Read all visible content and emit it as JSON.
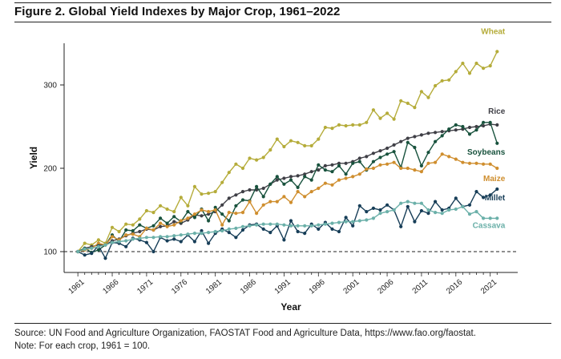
{
  "title": "Figure 2. Global Yield Indexes by Major Crop, 1961–2022",
  "source_note": "Source: UN Food and Agriculture Organization, FAOSTAT Food and Agriculture Data, https://www.fao.org/faostat.",
  "note": "Note: For each crop, 1961 = 100.",
  "chart_data": {
    "type": "line",
    "xlabel": "Year",
    "ylabel": "Yield",
    "x_ticks": [
      1961,
      1966,
      1971,
      1976,
      1981,
      1986,
      1991,
      1996,
      2001,
      2006,
      2011,
      2016,
      2021
    ],
    "y_ticks": [
      100,
      200,
      300
    ],
    "xlim": [
      1959,
      2025
    ],
    "ylim": [
      75,
      350
    ],
    "reference_line": {
      "y": 100,
      "style": "dashed"
    },
    "x": [
      1961,
      1962,
      1963,
      1964,
      1965,
      1966,
      1967,
      1968,
      1969,
      1970,
      1971,
      1972,
      1973,
      1974,
      1975,
      1976,
      1977,
      1978,
      1979,
      1980,
      1981,
      1982,
      1983,
      1984,
      1985,
      1986,
      1987,
      1988,
      1989,
      1990,
      1991,
      1992,
      1993,
      1994,
      1995,
      1996,
      1997,
      1998,
      1999,
      2000,
      2001,
      2002,
      2003,
      2004,
      2005,
      2006,
      2007,
      2008,
      2009,
      2010,
      2011,
      2012,
      2013,
      2014,
      2015,
      2016,
      2017,
      2018,
      2019,
      2020,
      2021,
      2022
    ],
    "series": [
      {
        "name": "Wheat",
        "color": "#b5ac3a",
        "values": [
          100,
          110,
          108,
          114,
          110,
          129,
          124,
          133,
          132,
          139,
          149,
          147,
          155,
          151,
          148,
          165,
          155,
          178,
          169,
          170,
          172,
          183,
          195,
          205,
          200,
          212,
          210,
          213,
          222,
          235,
          226,
          233,
          231,
          227,
          227,
          235,
          249,
          248,
          252,
          251,
          252,
          252,
          255,
          270,
          260,
          266,
          259,
          281,
          278,
          273,
          292,
          285,
          299,
          305,
          306,
          316,
          326,
          314,
          326,
          320,
          323,
          340
        ]
      },
      {
        "name": "Rice",
        "color": "#3f3f46",
        "values": [
          100,
          104,
          106,
          108,
          108,
          113,
          115,
          119,
          122,
          124,
          127,
          126,
          130,
          131,
          136,
          134,
          138,
          144,
          143,
          145,
          148,
          156,
          164,
          168,
          172,
          174,
          174,
          176,
          181,
          186,
          188,
          190,
          191,
          193,
          196,
          198,
          203,
          204,
          206,
          206,
          208,
          212,
          214,
          218,
          221,
          224,
          228,
          232,
          236,
          238,
          240,
          242,
          243,
          244,
          245,
          246,
          247,
          249,
          250,
          251,
          253,
          252
        ]
      },
      {
        "name": "Soybeans",
        "color": "#18523d",
        "values": [
          100,
          104,
          99,
          102,
          108,
          120,
          112,
          126,
          125,
          132,
          128,
          131,
          140,
          134,
          142,
          136,
          148,
          141,
          151,
          137,
          153,
          145,
          137,
          155,
          162,
          161,
          178,
          166,
          181,
          190,
          181,
          186,
          177,
          190,
          186,
          204,
          198,
          196,
          203,
          193,
          206,
          208,
          198,
          208,
          213,
          217,
          220,
          201,
          231,
          225,
          203,
          219,
          232,
          239,
          247,
          252,
          250,
          241,
          246,
          255,
          255,
          230
        ]
      },
      {
        "name": "Maize",
        "color": "#cf8e2e",
        "values": [
          100,
          102,
          104,
          110,
          108,
          118,
          114,
          120,
          121,
          118,
          128,
          126,
          134,
          130,
          132,
          137,
          140,
          145,
          150,
          148,
          150,
          132,
          147,
          146,
          147,
          160,
          146,
          156,
          160,
          160,
          166,
          159,
          172,
          166,
          172,
          176,
          182,
          180,
          186,
          188,
          190,
          193,
          199,
          200,
          204,
          205,
          207,
          200,
          200,
          198,
          196,
          206,
          207,
          217,
          214,
          211,
          207,
          206,
          206,
          205,
          205,
          200
        ]
      },
      {
        "name": "Millet",
        "color": "#173e58",
        "values": [
          100,
          96,
          98,
          107,
          92,
          111,
          110,
          106,
          116,
          114,
          111,
          100,
          117,
          113,
          115,
          112,
          120,
          112,
          125,
          110,
          122,
          127,
          123,
          117,
          126,
          132,
          133,
          127,
          123,
          131,
          114,
          137,
          124,
          122,
          133,
          127,
          135,
          127,
          124,
          141,
          131,
          155,
          148,
          152,
          150,
          156,
          150,
          130,
          154,
          136,
          149,
          146,
          160,
          150,
          152,
          164,
          154,
          156,
          172,
          165,
          168,
          175
        ]
      },
      {
        "name": "Cassava",
        "color": "#6bb0a9",
        "values": [
          100,
          103,
          104,
          106,
          108,
          111,
          112,
          113,
          115,
          116,
          117,
          117,
          118,
          118,
          119,
          120,
          121,
          122,
          122,
          123,
          124,
          125,
          127,
          128,
          130,
          131,
          132,
          133,
          133,
          133,
          132,
          131,
          131,
          131,
          131,
          132,
          133,
          134,
          135,
          136,
          136,
          137,
          138,
          140,
          146,
          148,
          150,
          158,
          160,
          158,
          158,
          150,
          147,
          146,
          150,
          151,
          154,
          145,
          148,
          140,
          140,
          140
        ]
      }
    ]
  }
}
